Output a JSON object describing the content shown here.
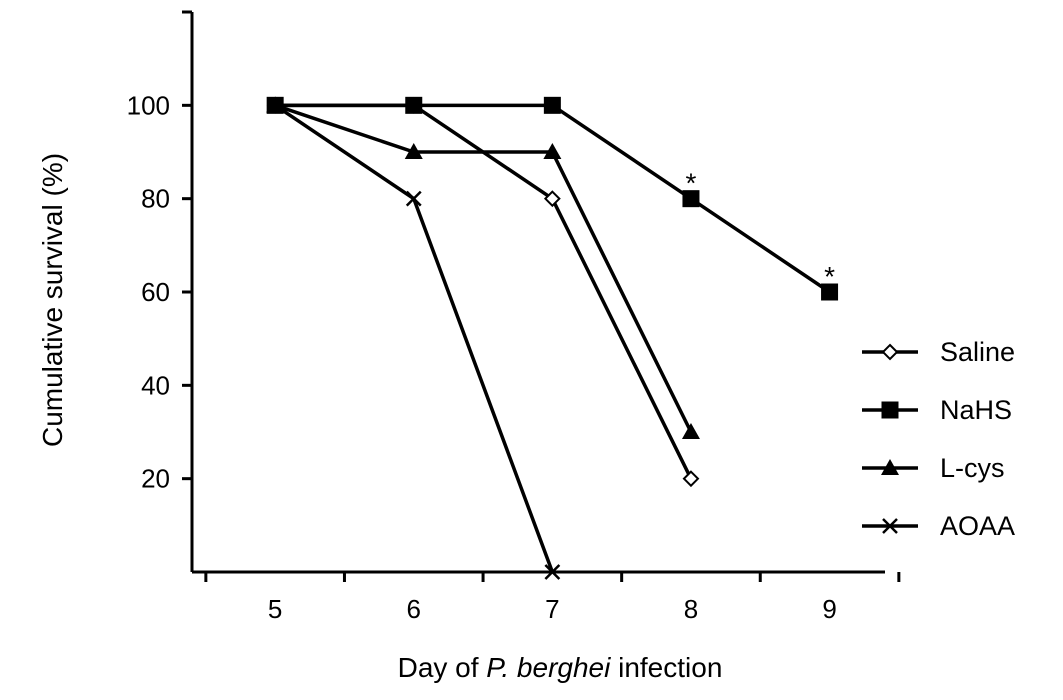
{
  "chart_data": {
    "type": "line",
    "xlabel_parts": {
      "before": "Day of ",
      "italic": "P. berghei",
      "after": " infection"
    },
    "ylabel": "Cumulative survival (%)",
    "x_ticks": [
      5,
      6,
      7,
      8,
      9
    ],
    "y_ticks": [
      20,
      40,
      60,
      80,
      100
    ],
    "xlim": [
      4.4,
      9.4
    ],
    "ylim": [
      0,
      120
    ],
    "grid": false,
    "legend_position": "right",
    "series": [
      {
        "name": "Saline",
        "marker": "open-diamond",
        "x": [
          5,
          6,
          7,
          8
        ],
        "y": [
          100,
          100,
          80,
          20
        ]
      },
      {
        "name": "NaHS",
        "marker": "filled-square",
        "x": [
          5,
          6,
          7,
          8,
          9
        ],
        "y": [
          100,
          100,
          100,
          80,
          60
        ]
      },
      {
        "name": "L-cys",
        "marker": "filled-triangle",
        "x": [
          5,
          6,
          7,
          8
        ],
        "y": [
          100,
          90,
          90,
          30
        ]
      },
      {
        "name": "AOAA",
        "marker": "x-cross",
        "x": [
          5,
          6,
          7
        ],
        "y": [
          100,
          80,
          0
        ]
      }
    ],
    "annotations": [
      {
        "text": "*",
        "x": 8,
        "y": 80
      },
      {
        "text": "*",
        "x": 9,
        "y": 60
      }
    ]
  }
}
